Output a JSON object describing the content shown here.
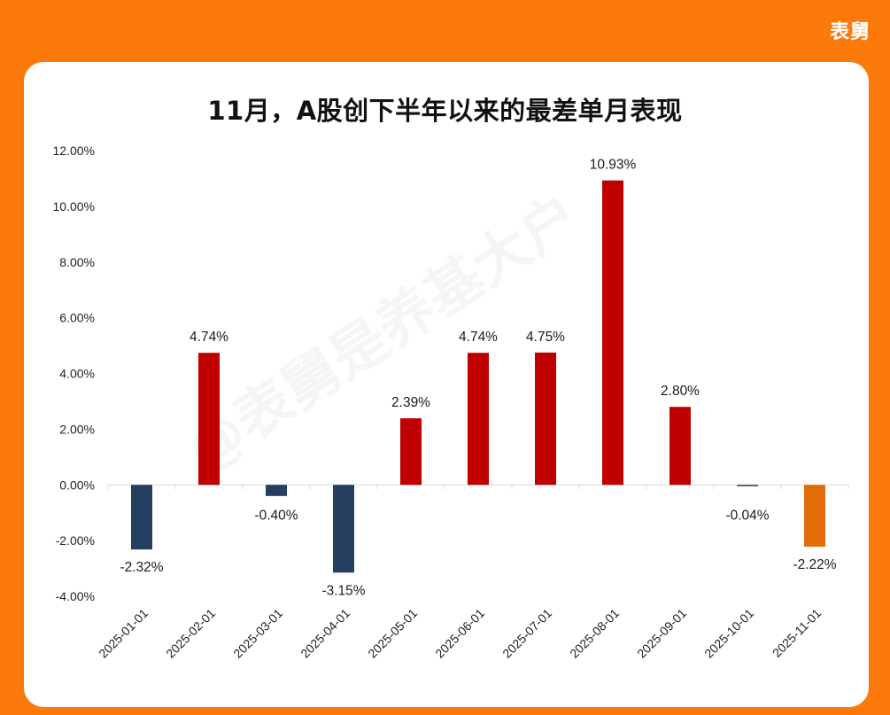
{
  "brand": {
    "logo_text": "表舅"
  },
  "watermark": "@表舅是养基大户",
  "chart_data": {
    "type": "bar",
    "title": "11月，A股创下半年以来的最差单月表现",
    "xlabel": "",
    "ylabel": "",
    "categories": [
      "2025-01-01",
      "2025-02-01",
      "2025-03-01",
      "2025-04-01",
      "2025-05-01",
      "2025-06-01",
      "2025-07-01",
      "2025-08-01",
      "2025-09-01",
      "2025-10-01",
      "2025-11-01"
    ],
    "values": [
      -2.32,
      4.74,
      -0.4,
      -3.15,
      2.39,
      4.74,
      4.75,
      10.93,
      2.8,
      -0.04,
      -2.22
    ],
    "value_labels": [
      "-2.32%",
      "4.74%",
      "-0.40%",
      "-3.15%",
      "2.39%",
      "4.74%",
      "4.75%",
      "10.93%",
      "2.80%",
      "-0.04%",
      "-2.22%"
    ],
    "ylim": [
      -4,
      12
    ],
    "yticks": [
      12,
      10,
      8,
      6,
      4,
      2,
      0,
      -2,
      -4
    ],
    "ytick_labels": [
      "12.00%",
      "10.00%",
      "8.00%",
      "6.00%",
      "4.00%",
      "2.00%",
      "0.00%",
      "-2.00%",
      "-4.00%"
    ],
    "grid": false,
    "legend": "none",
    "colors": {
      "positive": "#c00000",
      "negative": "#243f60",
      "latest": "#e36c0a"
    }
  }
}
